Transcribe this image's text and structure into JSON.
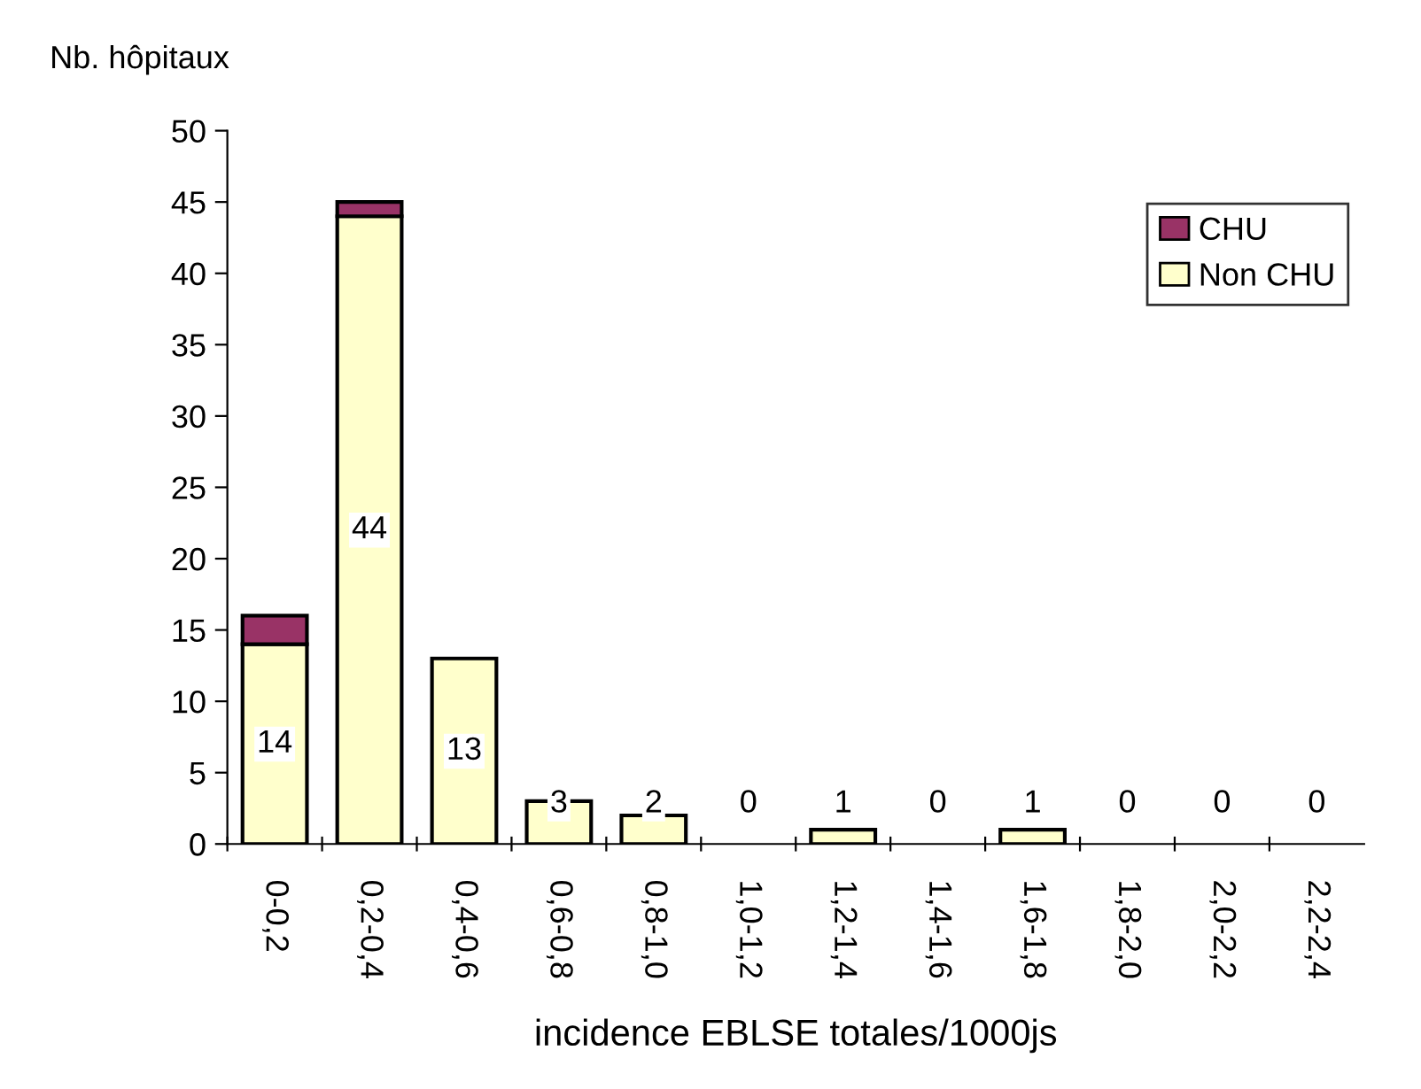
{
  "chart_data": {
    "type": "bar",
    "stacked": true,
    "ylabel": "Nb. hôpitaux",
    "xlabel": "incidence EBLSE totales/1000js",
    "categories": [
      "0-0,2",
      "0,2-0,4",
      "0,4-0,6",
      "0,6-0,8",
      "0,8-1,0",
      "1,0-1,2",
      "1,2-1,4",
      "1,4-1,6",
      "1,6-1,8",
      "1,8-2,0",
      "2,0-2,2",
      "2,2-2,4"
    ],
    "series": [
      {
        "name": "Non CHU",
        "color": "#ffffcc",
        "values": [
          14,
          44,
          13,
          3,
          2,
          0,
          1,
          0,
          1,
          0,
          0,
          0
        ],
        "value_labels": [
          "14",
          "44",
          "13",
          "3",
          "2",
          "0",
          "1",
          "0",
          "1",
          "0",
          "0",
          "0"
        ]
      },
      {
        "name": "CHU",
        "color": "#993366",
        "values": [
          2,
          1,
          0,
          0,
          0,
          0,
          0,
          0,
          0,
          0,
          0,
          0
        ]
      }
    ],
    "ylim": [
      0,
      50
    ],
    "yticks": [
      0,
      5,
      10,
      15,
      20,
      25,
      30,
      35,
      40,
      45,
      50
    ],
    "grid": false,
    "legend": "top right"
  }
}
